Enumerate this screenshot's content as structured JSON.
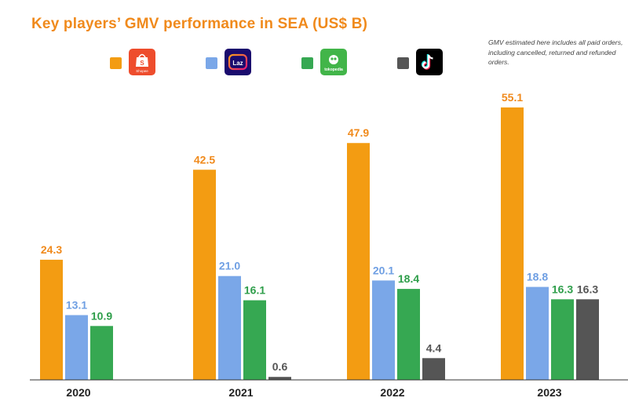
{
  "chart_data": {
    "type": "bar",
    "title": "Key players’ GMV performance in SEA (US$ B)",
    "note": "GMV estimated here includes all paid orders, including cancelled, returned and refunded orders.",
    "categories": [
      "2020",
      "2021",
      "2022",
      "2023"
    ],
    "series": [
      {
        "key": "shopee",
        "color": "#f39c12",
        "values": [
          24.3,
          42.5,
          47.9,
          55.1
        ]
      },
      {
        "key": "lazada",
        "color": "#7aa7e8",
        "values": [
          13.1,
          21.0,
          20.1,
          18.8
        ]
      },
      {
        "key": "tokopedia",
        "color": "#36a852",
        "values": [
          10.9,
          16.1,
          18.4,
          16.3
        ]
      },
      {
        "key": "tiktok",
        "color": "#555555",
        "values": [
          null,
          0.6,
          4.4,
          16.3
        ]
      }
    ],
    "value_labels": [
      [
        "24.3",
        "42.5",
        "47.9",
        "55.1"
      ],
      [
        "13.1",
        "21.0",
        "20.1",
        "18.8"
      ],
      [
        "10.9",
        "16.1",
        "18.4",
        "16.3"
      ],
      [
        "",
        "0.6",
        "4.4",
        "16.3"
      ]
    ],
    "label_colors": [
      "#f08a1c",
      "#6f9fe3",
      "#2e9e4a",
      "#555555"
    ],
    "ylim": [
      0,
      60
    ],
    "grid": false,
    "legend": "top"
  },
  "legend": {
    "shopee_logo_text": "Shopee",
    "lazada_logo_text": "Laz",
    "tokopedia_logo_text": "tokopedia"
  }
}
